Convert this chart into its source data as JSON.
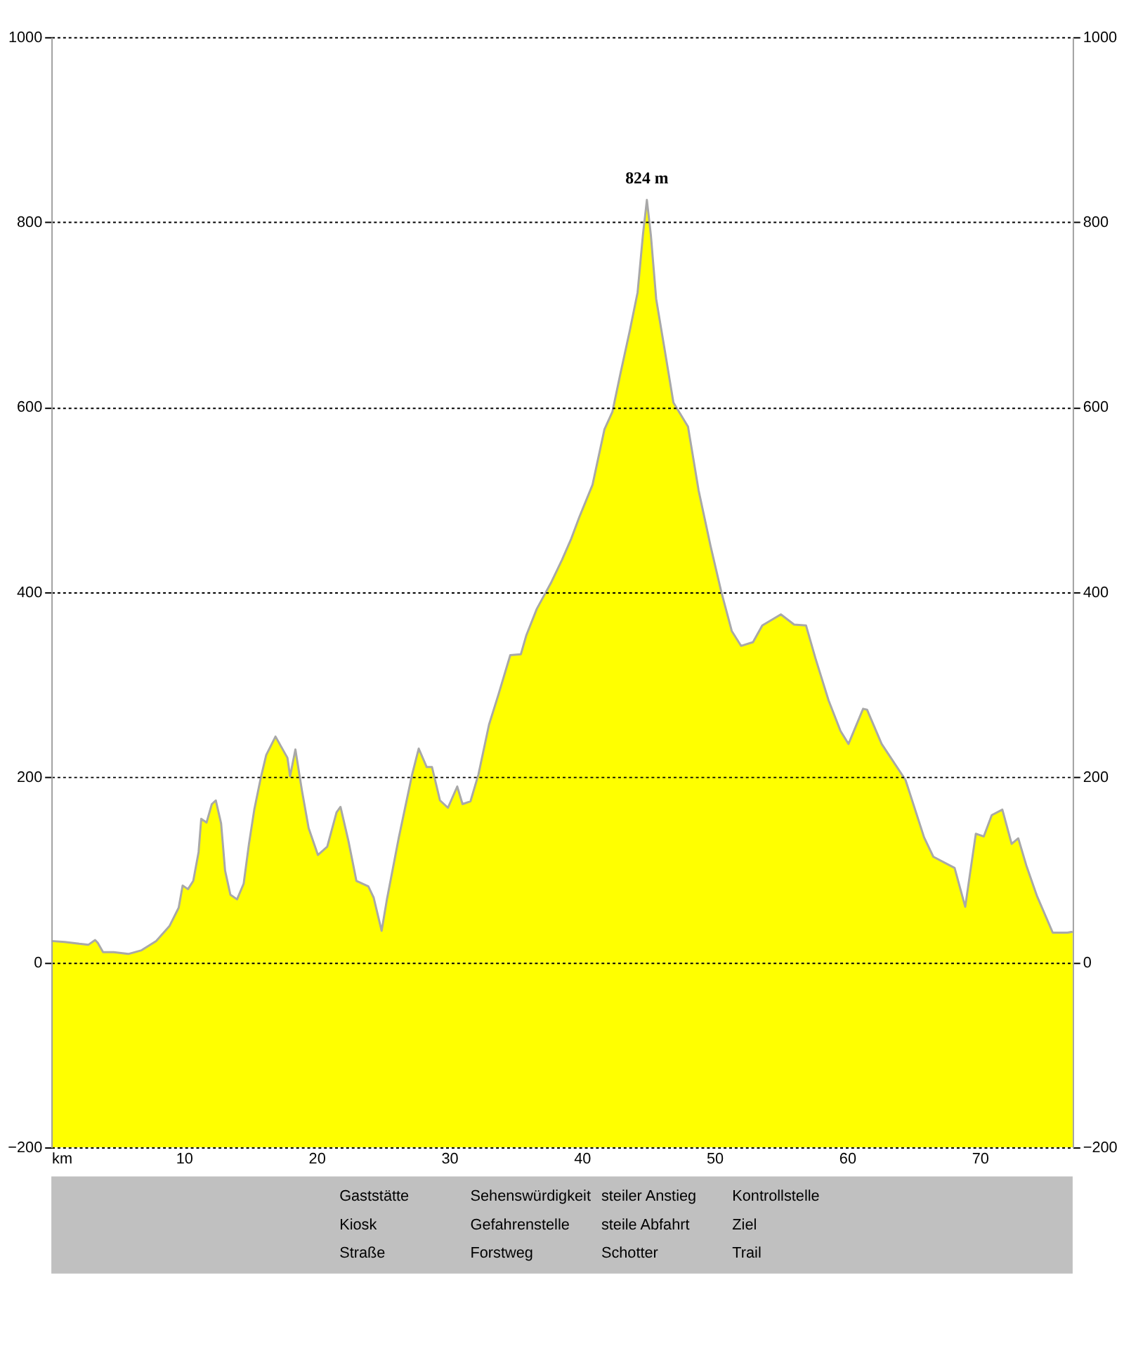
{
  "chart_data": {
    "type": "area",
    "x": [
      0,
      1.0,
      2.1,
      2.8,
      3.3,
      3.5,
      3.9,
      4.7,
      5.8,
      6.8,
      7.9,
      8.9,
      9.6,
      9.9,
      10.3,
      10.7,
      11.1,
      11.3,
      11.7,
      12.1,
      12.4,
      12.8,
      13.1,
      13.5,
      14.0,
      14.5,
      14.9,
      15.3,
      15.8,
      16.2,
      16.9,
      17.8,
      18.0,
      18.4,
      18.9,
      19.4,
      20.1,
      20.8,
      21.5,
      21.8,
      22.4,
      23.0,
      23.9,
      24.3,
      24.9,
      25.3,
      26.2,
      27.2,
      27.7,
      28.3,
      28.7,
      29.3,
      29.9,
      30.6,
      31.0,
      31.6,
      32.2,
      33.0,
      33.7,
      34.6,
      35.4,
      35.8,
      36.6,
      37.7,
      38.5,
      39.2,
      39.8,
      40.8,
      41.7,
      42.3,
      42.9,
      43.6,
      44.2,
      44.6,
      44.9,
      45.2,
      45.6,
      46.3,
      46.9,
      48.0,
      48.8,
      49.7,
      50.5,
      51.3,
      52.0,
      52.9,
      53.6,
      55.0,
      56.0,
      56.9,
      57.6,
      58.6,
      59.5,
      60.1,
      61.2,
      61.5,
      62.6,
      64.4,
      65.8,
      66.5,
      68.1,
      68.9,
      69.7,
      70.3,
      70.9,
      71.7,
      72.4,
      72.9,
      73.5,
      74.3,
      75.5,
      76.6,
      77.0
    ],
    "series": [
      {
        "color": "#ffff00",
        "values": [
          23,
          22,
          20,
          19,
          24,
          21,
          11,
          11,
          9,
          13,
          23,
          39,
          59,
          83,
          79,
          88,
          119,
          155,
          151,
          171,
          175,
          150,
          99,
          73,
          68,
          85,
          128,
          165,
          200,
          224,
          244,
          221,
          201,
          230,
          185,
          145,
          116,
          125,
          162,
          168,
          131,
          88,
          82,
          70,
          34,
          68,
          135,
          203,
          231,
          211,
          211,
          175,
          167,
          190,
          171,
          174,
          203,
          257,
          289,
          332,
          333,
          353,
          382,
          411,
          435,
          458,
          481,
          516,
          576,
          595,
          636,
          682,
          724,
          786,
          824,
          786,
          717,
          657,
          605,
          579,
          510,
          450,
          401,
          358,
          342,
          346,
          364,
          376,
          365,
          364,
          329,
          283,
          250,
          236,
          274,
          273,
          236,
          197,
          135,
          114,
          102,
          60,
          139,
          136,
          159,
          165,
          128,
          134,
          105,
          72,
          32,
          32,
          33
        ]
      }
    ],
    "xlim": [
      0,
      77
    ],
    "xticks": [
      {
        "value": 0,
        "label": "km"
      },
      10,
      20,
      30,
      40,
      50,
      60,
      70
    ],
    "ylim": [
      -200,
      1000
    ],
    "yticks": [
      -200,
      0,
      200,
      400,
      600,
      800,
      1000
    ],
    "y2lim": [
      -200,
      1000
    ],
    "y2ticks": [
      -200,
      0,
      200,
      400,
      600,
      800,
      1000
    ],
    "bands": [
      {
        "axis": "y",
        "from": -200,
        "to": 0,
        "color": "#ffff00"
      }
    ],
    "grid": "y",
    "line_style": "dotted",
    "annotations": [
      {
        "text": "824 m",
        "x": 44.9,
        "y": 824
      },
      "Gaststätte",
      "Sehenswürdigkeit",
      "steiler Anstieg",
      "Kontrollstelle",
      "Kiosk",
      "Gefahrenstelle",
      "steile Abfahrt",
      "Ziel",
      "Straße",
      "Forstweg",
      "Schotter",
      "Trail"
    ]
  }
}
